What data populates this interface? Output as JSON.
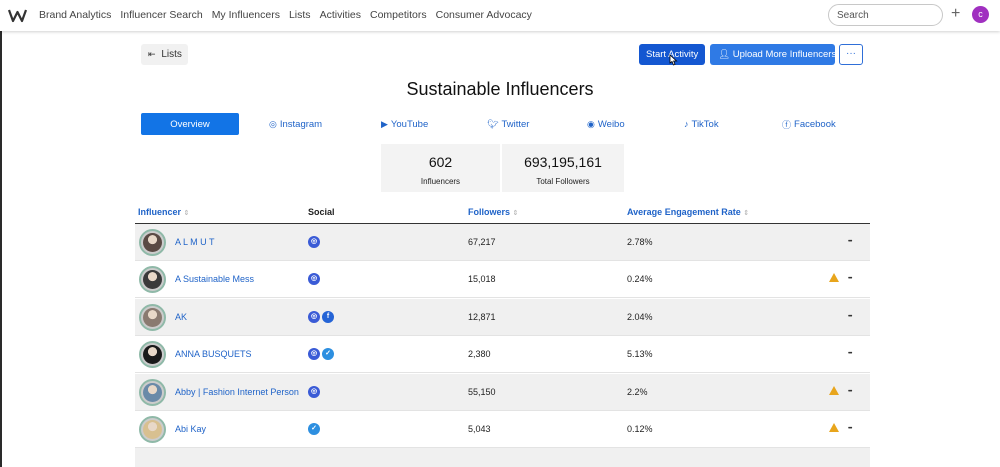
{
  "nav": {
    "items": [
      "Brand Analytics",
      "Influencer Search",
      "My Influencers",
      "Lists",
      "Activities",
      "Competitors",
      "Consumer Advocacy"
    ],
    "search_placeholder": "Search",
    "plus_symbol": "+",
    "user_initial": "c"
  },
  "header": {
    "back_label": "Lists",
    "start_activity_label": "Start Activity",
    "upload_label": "Upload More Influencers",
    "more_label": "···",
    "title": "Sustainable Influencers"
  },
  "tabs": [
    {
      "label": "Overview",
      "icon": "",
      "active": true
    },
    {
      "label": "Instagram",
      "icon": "instagram-icon"
    },
    {
      "label": "YouTube",
      "icon": "youtube-icon"
    },
    {
      "label": "Twitter",
      "icon": "twitter-icon"
    },
    {
      "label": "Weibo",
      "icon": "weibo-icon"
    },
    {
      "label": "TikTok",
      "icon": "tiktok-icon"
    },
    {
      "label": "Facebook",
      "icon": "facebook-icon"
    }
  ],
  "stats": [
    {
      "value": "602",
      "label": "Influencers"
    },
    {
      "value": "693,195,161",
      "label": "Total Followers"
    }
  ],
  "table": {
    "columns": [
      "Influencer",
      "Social",
      "Followers",
      "Average Engagement Rate"
    ],
    "rows": [
      {
        "name": "A L M U T",
        "social": [
          "instagram"
        ],
        "followers": "67,217",
        "rate": "2.78%",
        "warning": false,
        "avatar_color": "#5a4a44"
      },
      {
        "name": "A Sustainable Mess",
        "social": [
          "instagram"
        ],
        "followers": "15,018",
        "rate": "0.24%",
        "warning": true,
        "avatar_color": "#3a3a3a"
      },
      {
        "name": "AK",
        "social": [
          "instagram",
          "facebook"
        ],
        "followers": "12,871",
        "rate": "2.04%",
        "warning": false,
        "avatar_color": "#8a7a70"
      },
      {
        "name": "ANNA BUSQUETS",
        "social": [
          "instagram",
          "twitter"
        ],
        "followers": "2,380",
        "rate": "5.13%",
        "warning": false,
        "avatar_color": "#1a1a1a"
      },
      {
        "name": "Abby | Fashion Internet Person",
        "social": [
          "instagram"
        ],
        "followers": "55,150",
        "rate": "2.2%",
        "warning": true,
        "avatar_color": "#6a8aa8"
      },
      {
        "name": "Abi Kay",
        "social": [
          "twitter"
        ],
        "followers": "5,043",
        "rate": "0.12%",
        "warning": true,
        "avatar_color": "#d8c090"
      }
    ]
  },
  "colors": {
    "link": "#1f63c8",
    "primary": "#1457d1",
    "accent": "#2f7ae5",
    "warning": "#e8a51c"
  }
}
